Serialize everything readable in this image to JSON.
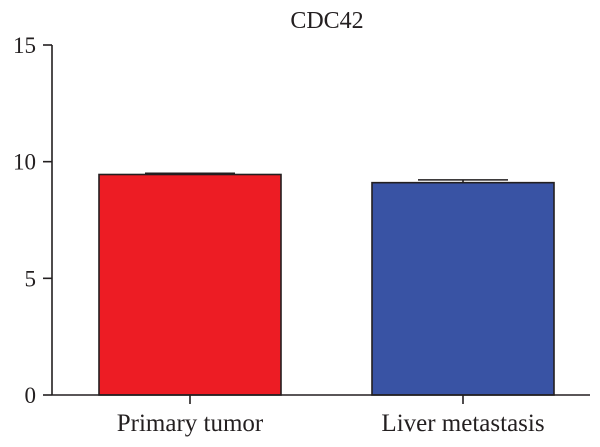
{
  "chart_data": {
    "type": "bar",
    "title": "CDC42",
    "categories": [
      "Primary tumor",
      "Liver metastasis"
    ],
    "values": [
      9.45,
      9.1
    ],
    "errors": [
      0.05,
      0.12
    ],
    "colors": [
      "#ed1c24",
      "#3953a4"
    ],
    "ylim": [
      0,
      15
    ],
    "yticks": [
      0,
      5,
      10,
      15
    ],
    "xlabel": "",
    "ylabel": "",
    "grid": false
  }
}
